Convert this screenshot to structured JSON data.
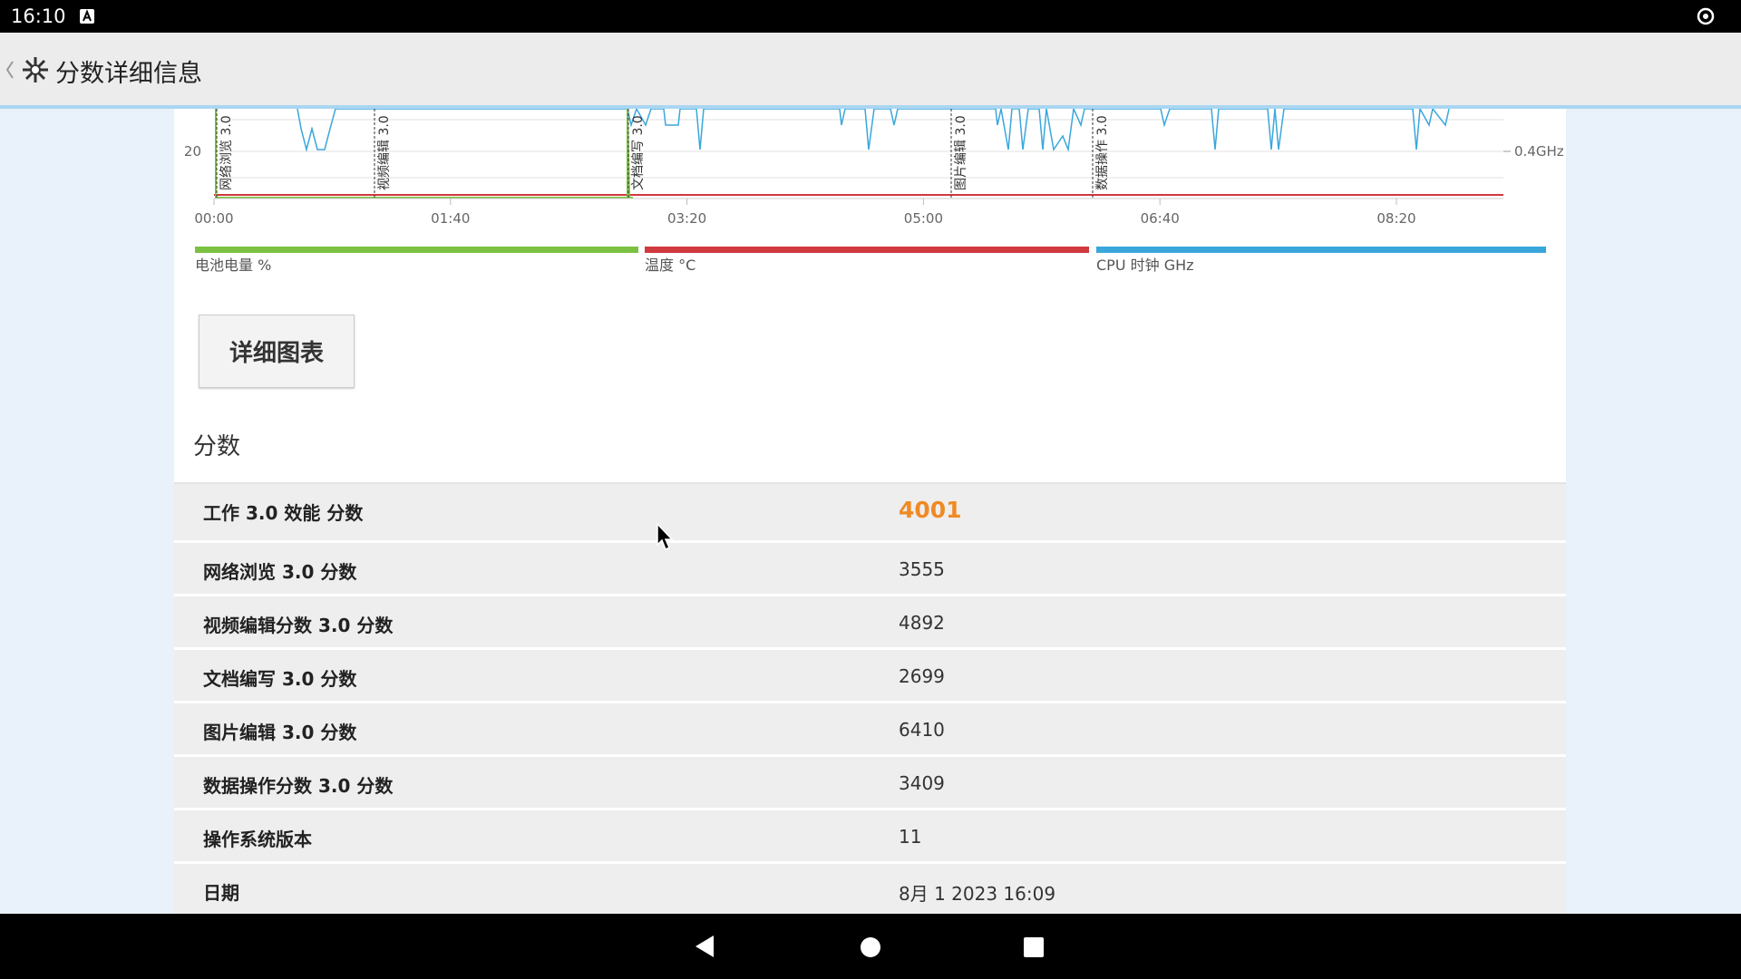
{
  "status_bar": {
    "time": "16:10"
  },
  "app_bar": {
    "title": "分数详细信息"
  },
  "chart": {
    "x_ticks": [
      "00:00",
      "01:40",
      "03:20",
      "05:00",
      "06:40",
      "08:20"
    ],
    "left_tick": "20",
    "right_tick": "0.4GHz",
    "markers": [
      "网络浏览 3.0",
      "视频编辑 3.0",
      "文档编写 3.0",
      "图片编辑 3.0",
      "数据操作 3.0"
    ],
    "legend": [
      {
        "name": "电池电量 %",
        "color": "#7cc142"
      },
      {
        "name": "温度 °C",
        "color": "#d0393e"
      },
      {
        "name": "CPU 时钟 GHz",
        "color": "#3aa7dc"
      }
    ]
  },
  "button": "详细图表",
  "section_title": "分数",
  "table": {
    "rows": [
      [
        "工作 3.0 效能 分数",
        4001
      ],
      [
        "网络浏览 3.0 分数",
        3555
      ],
      [
        "视频编辑分数 3.0 分数",
        4892
      ],
      [
        "文档编写 3.0 分数",
        2699
      ],
      [
        "图片编辑 3.0 分数",
        6410
      ],
      [
        "数据操作分数 3.0 分数",
        3409
      ],
      [
        "操作系统版本",
        11
      ],
      [
        "日期",
        "8月 1 2023 16:09"
      ]
    ]
  }
}
